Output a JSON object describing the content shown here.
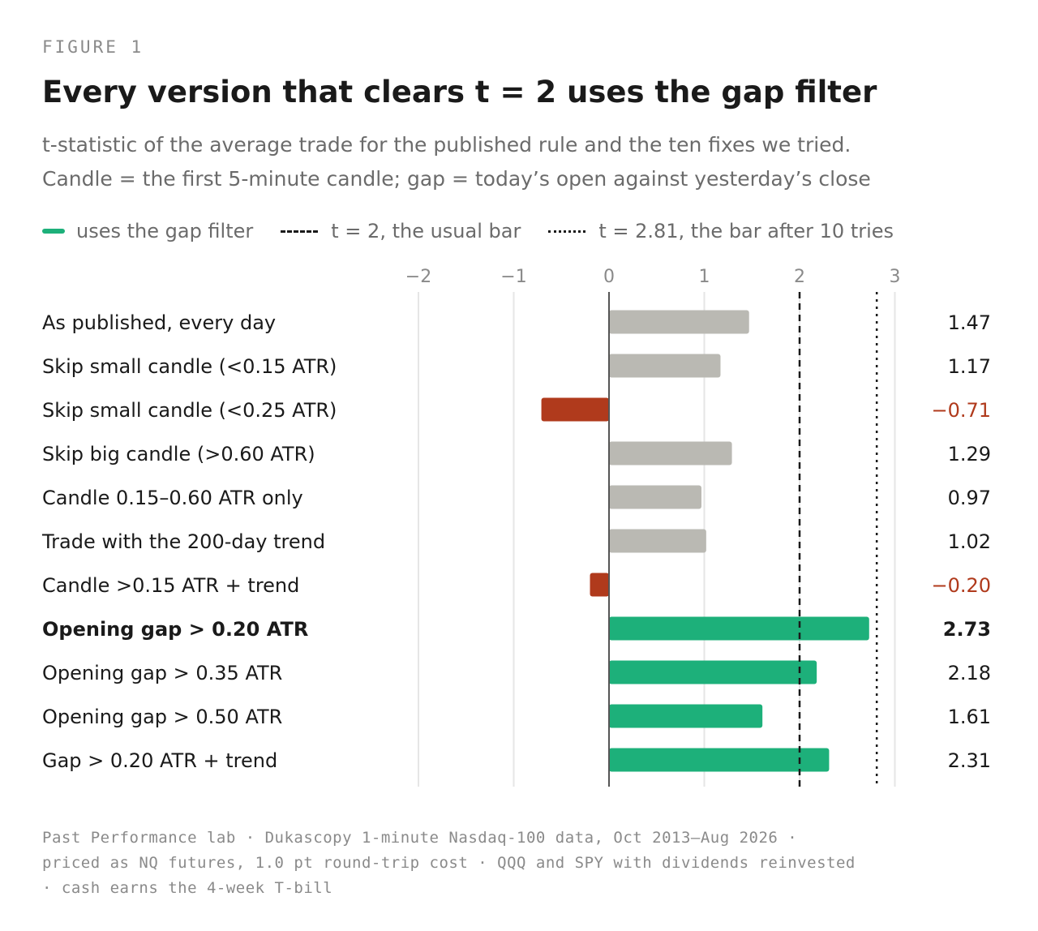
{
  "figure_label": "FIGURE 1",
  "title": "Every version that clears t = 2 uses the gap filter",
  "subtitle_lines": [
    "t-statistic of the average trade for the published rule and the ten fixes we tried.",
    "Candle = the first 5-minute candle; gap = today’s open against yesterday’s close"
  ],
  "legend": {
    "gap": "uses the gap filter",
    "t2": "t = 2, the usual bar",
    "t281": "t = 2.81, the bar after 10 tries"
  },
  "colors": {
    "gap": "#1db07a",
    "neutral": "#bab9b3",
    "negative": "#b03a1c",
    "text": "#1a1a1a",
    "muted": "#8a8a8a",
    "grid": "#e6e6e6"
  },
  "chart_data": {
    "type": "bar",
    "orientation": "horizontal",
    "xlim": [
      -2,
      3
    ],
    "xticks": [
      -2,
      -1,
      0,
      1,
      2,
      3
    ],
    "tick_labels": [
      "−2",
      "−1",
      "0",
      "1",
      "2",
      "3"
    ],
    "reference_lines": [
      {
        "value": 2,
        "style": "dashed",
        "label": "t = 2, the usual bar"
      },
      {
        "value": 2.81,
        "style": "dotted",
        "label": "t = 2.81, the bar after 10 tries"
      }
    ],
    "bars": [
      {
        "label": "As published, every day",
        "value": 1.47,
        "value_label": "1.47",
        "gap": false,
        "bold": false
      },
      {
        "label": "Skip small candle (<0.15 ATR)",
        "value": 1.17,
        "value_label": "1.17",
        "gap": false,
        "bold": false
      },
      {
        "label": "Skip small candle (<0.25 ATR)",
        "value": -0.71,
        "value_label": "−0.71",
        "gap": false,
        "bold": false
      },
      {
        "label": "Skip big candle (>0.60 ATR)",
        "value": 1.29,
        "value_label": "1.29",
        "gap": false,
        "bold": false
      },
      {
        "label": "Candle 0.15–0.60 ATR only",
        "value": 0.97,
        "value_label": "0.97",
        "gap": false,
        "bold": false
      },
      {
        "label": "Trade with the 200-day trend",
        "value": 1.02,
        "value_label": "1.02",
        "gap": false,
        "bold": false
      },
      {
        "label": "Candle >0.15 ATR + trend",
        "value": -0.2,
        "value_label": "−0.20",
        "gap": false,
        "bold": false
      },
      {
        "label": "Opening gap > 0.20 ATR",
        "value": 2.73,
        "value_label": "2.73",
        "gap": true,
        "bold": true
      },
      {
        "label": "Opening gap > 0.35 ATR",
        "value": 2.18,
        "value_label": "2.18",
        "gap": true,
        "bold": false
      },
      {
        "label": "Opening gap > 0.50 ATR",
        "value": 1.61,
        "value_label": "1.61",
        "gap": true,
        "bold": false
      },
      {
        "label": "Gap > 0.20 ATR + trend",
        "value": 2.31,
        "value_label": "2.31",
        "gap": true,
        "bold": false
      }
    ]
  },
  "footer_lines": [
    "Past Performance lab · Dukascopy 1-minute Nasdaq-100 data, Oct 2013–Aug 2026 ·",
    "priced as NQ futures, 1.0 pt round-trip cost · QQQ and SPY with dividends reinvested",
    "· cash earns the 4-week T-bill"
  ]
}
